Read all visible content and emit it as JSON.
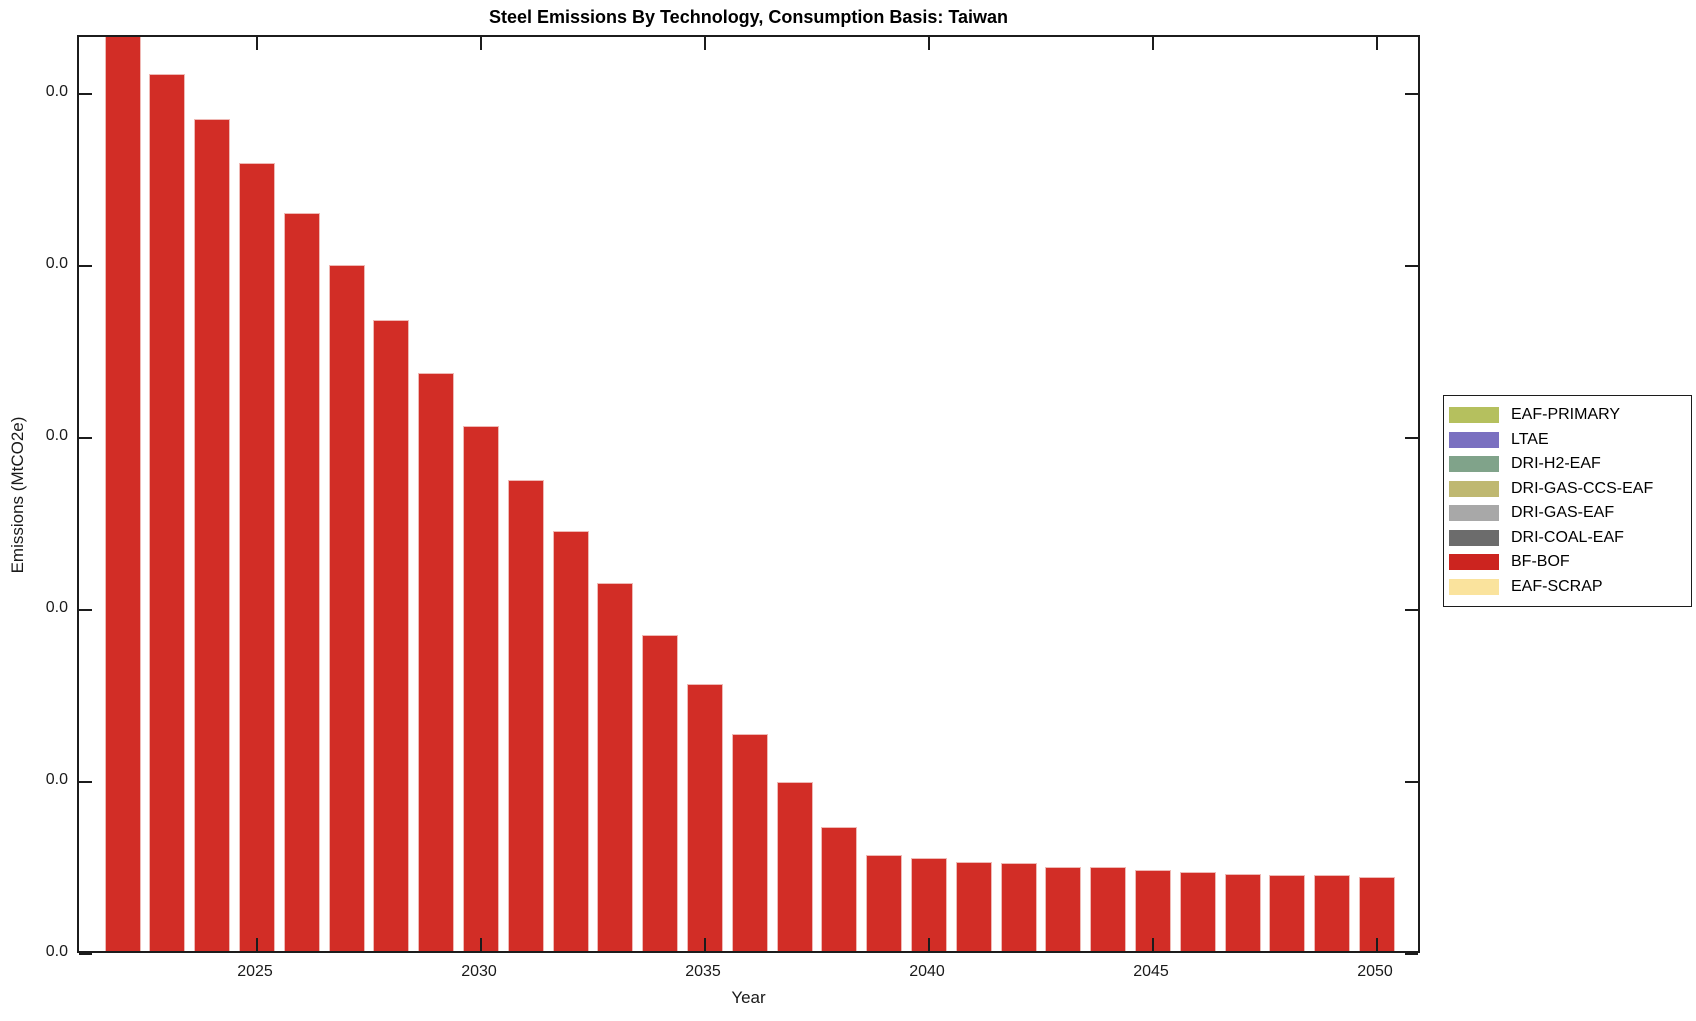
{
  "title": "Steel Emissions By Technology, Consumption Basis: Taiwan",
  "axes": {
    "xlabel": "Year",
    "ylabel": "Emissions (MtCO2e)",
    "x_tick_labels": [
      "2025",
      "2030",
      "2035",
      "2040",
      "2045",
      "2050"
    ],
    "y_tick_labels": [
      "0.0",
      "0.0",
      "0.0",
      "0.0",
      "0.0",
      "0.0"
    ]
  },
  "legend": {
    "entries": [
      {
        "label": "EAF-PRIMARY",
        "color": "#b5c05e"
      },
      {
        "label": "LTAE",
        "color": "#7a70c0"
      },
      {
        "label": "DRI-H2-EAF",
        "color": "#80a38a"
      },
      {
        "label": "DRI-GAS-CCS-EAF",
        "color": "#bfb871"
      },
      {
        "label": "DRI-GAS-EAF",
        "color": "#a8a8a8"
      },
      {
        "label": "DRI-COAL-EAF",
        "color": "#6c6c6c"
      },
      {
        "label": "BF-BOF",
        "color": "#cc241f"
      },
      {
        "label": "EAF-SCRAP",
        "color": "#fae39d"
      }
    ]
  },
  "chart_data": {
    "type": "bar",
    "title": "Steel Emissions By Technology, Consumption Basis: Taiwan",
    "xlabel": "Year",
    "ylabel": "Emissions (MtCO2e)",
    "categories": [
      "2022",
      "2023",
      "2024",
      "2025",
      "2026",
      "2027",
      "2028",
      "2029",
      "2030",
      "2031",
      "2032",
      "2033",
      "2034",
      "2035",
      "2036",
      "2037",
      "2038",
      "2039",
      "2040",
      "2041",
      "2042",
      "2043",
      "2044",
      "2045",
      "2046",
      "2047",
      "2048",
      "2049",
      "2050"
    ],
    "series": [
      {
        "name": "BF-BOF",
        "color": "#d22d26",
        "values": [
          5.35,
          5.1,
          4.84,
          4.58,
          4.29,
          3.99,
          3.67,
          3.36,
          3.05,
          2.74,
          2.44,
          2.14,
          1.84,
          1.55,
          1.26,
          0.98,
          0.72,
          0.56,
          0.54,
          0.52,
          0.51,
          0.49,
          0.49,
          0.47,
          0.46,
          0.45,
          0.44,
          0.44,
          0.43
        ]
      }
    ],
    "values_unit": "y-axis gridline intervals (every y tick label displays 0.0; values estimated from bar heights, 2022 bar is clipped at the plot top)",
    "x_tick_labels": [
      "2025",
      "2030",
      "2035",
      "2040",
      "2045",
      "2050"
    ],
    "y_tick_labels": [
      "0.0",
      "0.0",
      "0.0",
      "0.0",
      "0.0",
      "0.0"
    ],
    "xlim": [
      2021,
      2051
    ],
    "ylim": [
      0,
      5.34
    ],
    "grid": false,
    "legend_position": "outside-right",
    "legend_entries_unused_in_plot": [
      "EAF-PRIMARY",
      "LTAE",
      "DRI-H2-EAF",
      "DRI-GAS-CCS-EAF",
      "DRI-GAS-EAF",
      "DRI-COAL-EAF",
      "EAF-SCRAP"
    ]
  },
  "style": {
    "bar_fill": "#d22d26",
    "bar_edge": "#efb9b5",
    "axis_color": "#1c1c1c",
    "background": "#ffffff"
  }
}
